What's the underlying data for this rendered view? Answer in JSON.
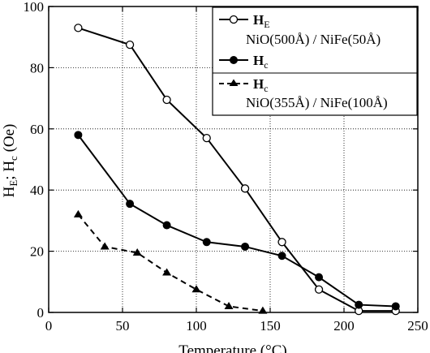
{
  "chart_data": {
    "type": "line",
    "xlabel": "Temperature (°C)",
    "ylabel_main": "H",
    "ylabel_sub1": "E",
    "ylabel_mid": "; H",
    "ylabel_sub2": "c",
    "ylabel_tail": " (Oe)",
    "xlim": [
      0,
      250
    ],
    "ylim": [
      0,
      100
    ],
    "xticks": [
      0,
      50,
      100,
      150,
      200,
      250
    ],
    "yticks": [
      0,
      20,
      40,
      60,
      80,
      100
    ],
    "grid": true,
    "legend_position": "top-right",
    "series": [
      {
        "name_main": "H",
        "name_sub": "E",
        "marker": "open-circle",
        "line": "solid",
        "color": "#000000",
        "x": [
          20,
          55,
          80,
          107,
          133,
          158,
          183,
          210,
          235
        ],
        "y": [
          93,
          87.5,
          69.5,
          57,
          40.5,
          23,
          7.5,
          0.5,
          0.5
        ]
      },
      {
        "name_main": "H",
        "name_sub": "c",
        "marker": "filled-circle",
        "line": "solid",
        "color": "#000000",
        "x": [
          20,
          55,
          80,
          107,
          133,
          158,
          183,
          210,
          235
        ],
        "y": [
          58,
          35.5,
          28.5,
          23,
          21.5,
          18.5,
          11.5,
          2.5,
          2
        ]
      },
      {
        "name_main": "H",
        "name_sub": "c",
        "marker": "filled-triangle",
        "line": "dashed",
        "color": "#000000",
        "x": [
          20,
          38,
          60,
          80,
          100,
          122,
          145
        ],
        "y": [
          32,
          21.5,
          19.5,
          13,
          7.5,
          2,
          0.5
        ]
      }
    ],
    "legend_groups": [
      {
        "label": "NiO(500Å) / NiFe(50Å)"
      },
      {
        "label": "NiO(355Å) / NiFe(100Å)"
      }
    ]
  }
}
